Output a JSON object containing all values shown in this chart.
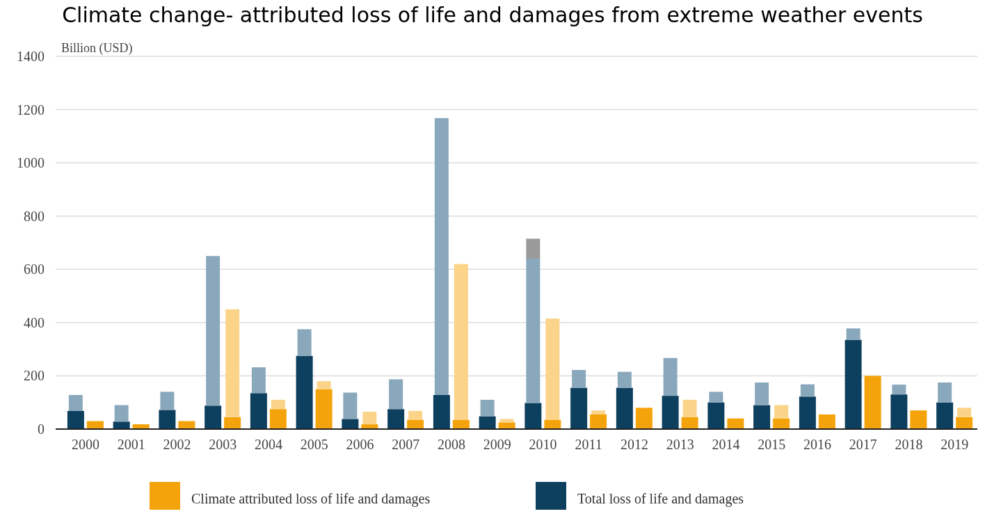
{
  "chart_data": {
    "type": "bar",
    "title": "Climate change- attributed loss of life and damages from extreme weather events",
    "ylabel": "Billion (USD)",
    "categories": [
      "2000",
      "2001",
      "2002",
      "2003",
      "2004",
      "2005",
      "2006",
      "2007",
      "2008",
      "2009",
      "2010",
      "2011",
      "2012",
      "2013",
      "2014",
      "2015",
      "2016",
      "2017",
      "2018",
      "2019"
    ],
    "grid": "y",
    "legend": "bottom",
    "ylim": [
      0,
      1400
    ],
    "yticks": [
      0,
      200,
      400,
      600,
      800,
      1000,
      1200,
      1400
    ],
    "series": [
      {
        "name": "Total loss of life and damages",
        "color": "#0d3f5e",
        "values": [
          68,
          28,
          72,
          88,
          135,
          275,
          38,
          75,
          128,
          48,
          98,
          155,
          155,
          125,
          100,
          90,
          122,
          335,
          130,
          100
        ]
      },
      {
        "color": "#8aa8bc",
        "base": [
          68,
          28,
          72,
          88,
          135,
          275,
          38,
          75,
          128,
          48,
          98,
          155,
          155,
          125,
          100,
          90,
          122,
          335,
          130,
          100
        ],
        "values": [
          60,
          62,
          68,
          562,
          97,
          100,
          99,
          112,
          1040,
          62,
          542,
          67,
          60,
          142,
          40,
          85,
          46,
          43,
          37,
          75
        ]
      },
      {
        "color": "#9a9a9a",
        "base": [
          null,
          null,
          null,
          null,
          null,
          null,
          null,
          null,
          null,
          null,
          640,
          null,
          null,
          null,
          null,
          null,
          null,
          null,
          null,
          null
        ],
        "values": [
          null,
          null,
          null,
          null,
          null,
          null,
          null,
          null,
          null,
          null,
          75,
          null,
          null,
          null,
          null,
          null,
          null,
          null,
          null,
          null
        ]
      },
      {
        "name": "Climate attributed loss of life and damages",
        "color": "#f5a30a",
        "values": [
          30,
          18,
          30,
          45,
          75,
          150,
          18,
          35,
          35,
          25,
          35,
          55,
          80,
          45,
          40,
          40,
          55,
          200,
          70,
          45
        ]
      },
      {
        "color": "#fbd48a",
        "base": [
          null,
          null,
          null,
          45,
          75,
          150,
          18,
          35,
          35,
          25,
          35,
          55,
          null,
          45,
          null,
          40,
          null,
          null,
          null,
          45
        ],
        "values": [
          null,
          null,
          null,
          405,
          35,
          30,
          47,
          33,
          585,
          13,
          380,
          15,
          null,
          65,
          null,
          50,
          null,
          null,
          null,
          35
        ]
      }
    ]
  }
}
